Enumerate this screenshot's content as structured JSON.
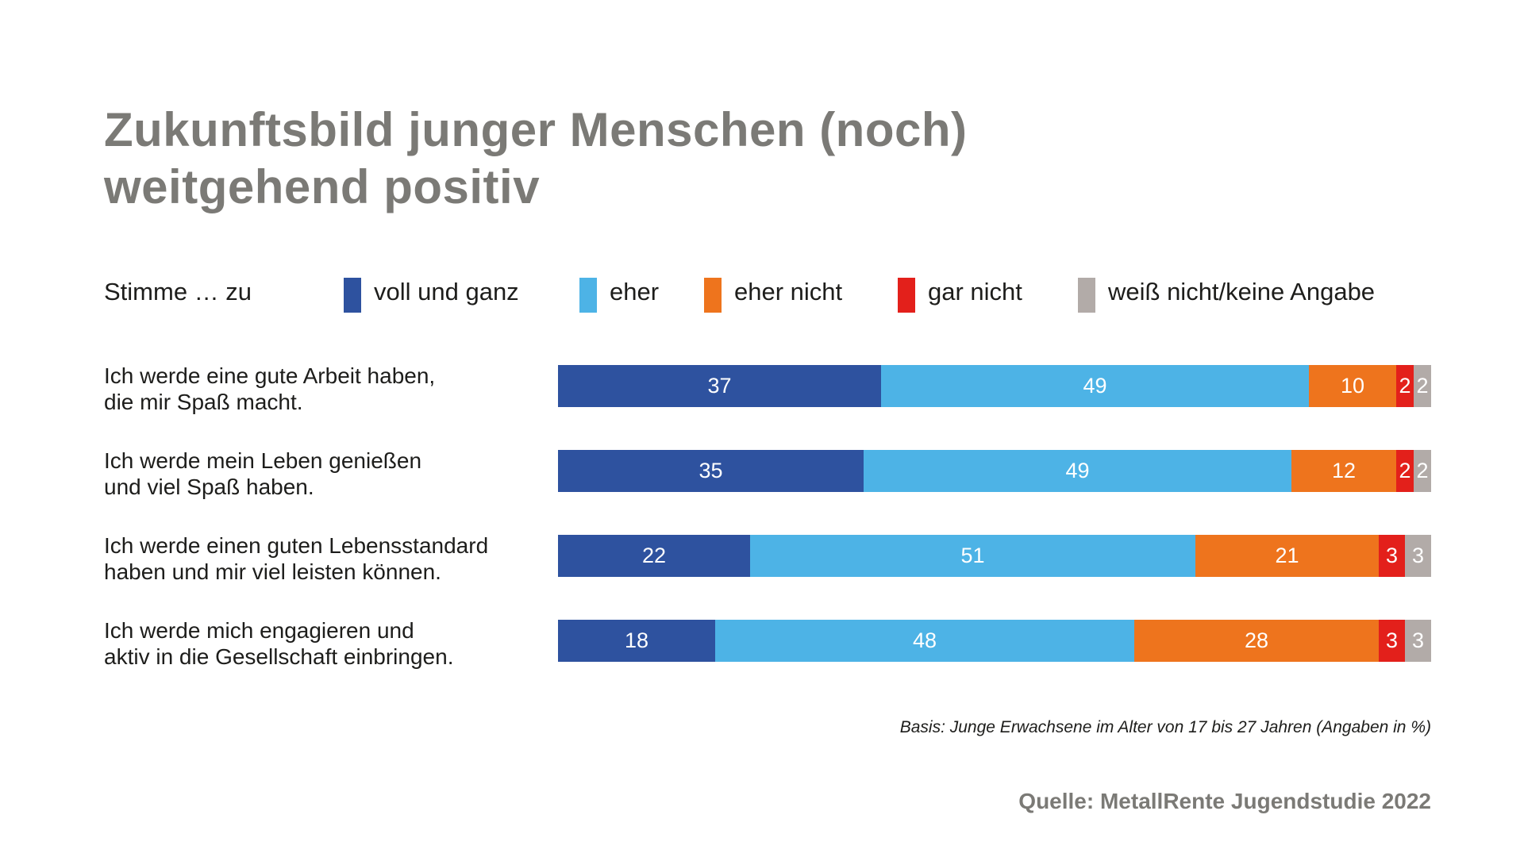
{
  "chart_data": {
    "type": "bar",
    "orientation": "horizontal",
    "stacked": true,
    "title": "Zukunftsbild junger Menschen (noch) weitgehend positiv",
    "title_lines": [
      "Zukunftsbild junger Menschen (noch)",
      "weitgehend positiv"
    ],
    "legend_prefix": "Stimme … zu",
    "legend_position": "top",
    "categories": [
      "Ich werde eine gute Arbeit haben, die mir Spaß macht.",
      "Ich werde mein Leben genießen und viel Spaß haben.",
      "Ich werde einen guten Lebensstandard haben und mir viel leisten können.",
      "Ich werde mich engagieren und aktiv in die Gesellschaft einbringen."
    ],
    "category_lines": [
      [
        "Ich werde eine gute Arbeit haben,",
        "die mir Spaß macht."
      ],
      [
        "Ich werde mein Leben genießen",
        "und viel Spaß haben."
      ],
      [
        "Ich werde einen guten Lebensstandard",
        "haben und mir viel leisten können."
      ],
      [
        "Ich werde mich engagieren und",
        "aktiv in die Gesellschaft einbringen."
      ]
    ],
    "series": [
      {
        "name": "voll und ganz",
        "color": "#2e529f",
        "values": [
          37,
          35,
          22,
          18
        ]
      },
      {
        "name": "eher",
        "color": "#4db3e6",
        "values": [
          49,
          49,
          51,
          48
        ]
      },
      {
        "name": "eher nicht",
        "color": "#ee741d",
        "values": [
          10,
          12,
          21,
          28
        ]
      },
      {
        "name": "gar nicht",
        "color": "#e3201b",
        "values": [
          2,
          2,
          3,
          3
        ]
      },
      {
        "name": "weiß nicht/keine Angabe",
        "color": "#b2aba8",
        "values": [
          2,
          2,
          3,
          3
        ]
      }
    ],
    "grid": false,
    "note": "Basis: Junge Erwachsene im Alter von 17 bis 27 Jahren (Angaben in %)",
    "source": "Quelle: MetallRente Jugendstudie 2022"
  }
}
